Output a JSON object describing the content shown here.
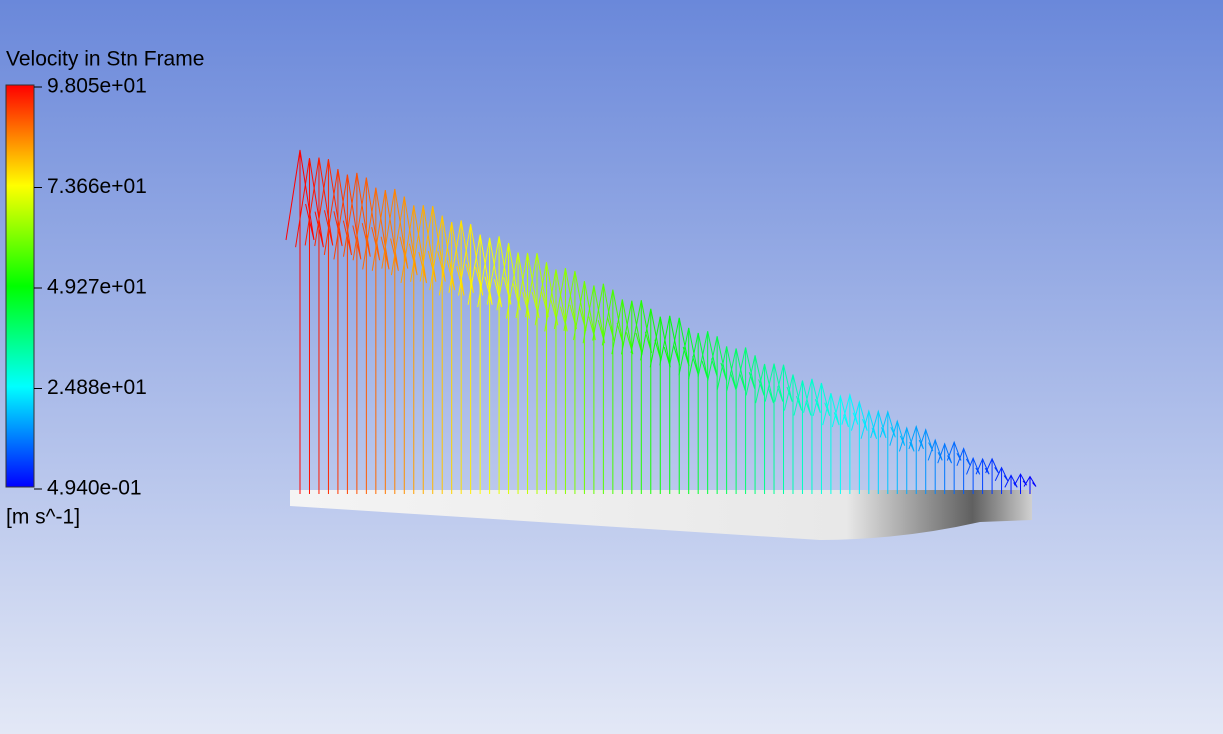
{
  "legend": {
    "title": "Velocity in Stn Frame",
    "labels": [
      "9.805e+01",
      "7.366e+01",
      "4.927e+01",
      "2.488e+01",
      "4.940e-01"
    ],
    "unit": "[m s^-1]"
  }
}
